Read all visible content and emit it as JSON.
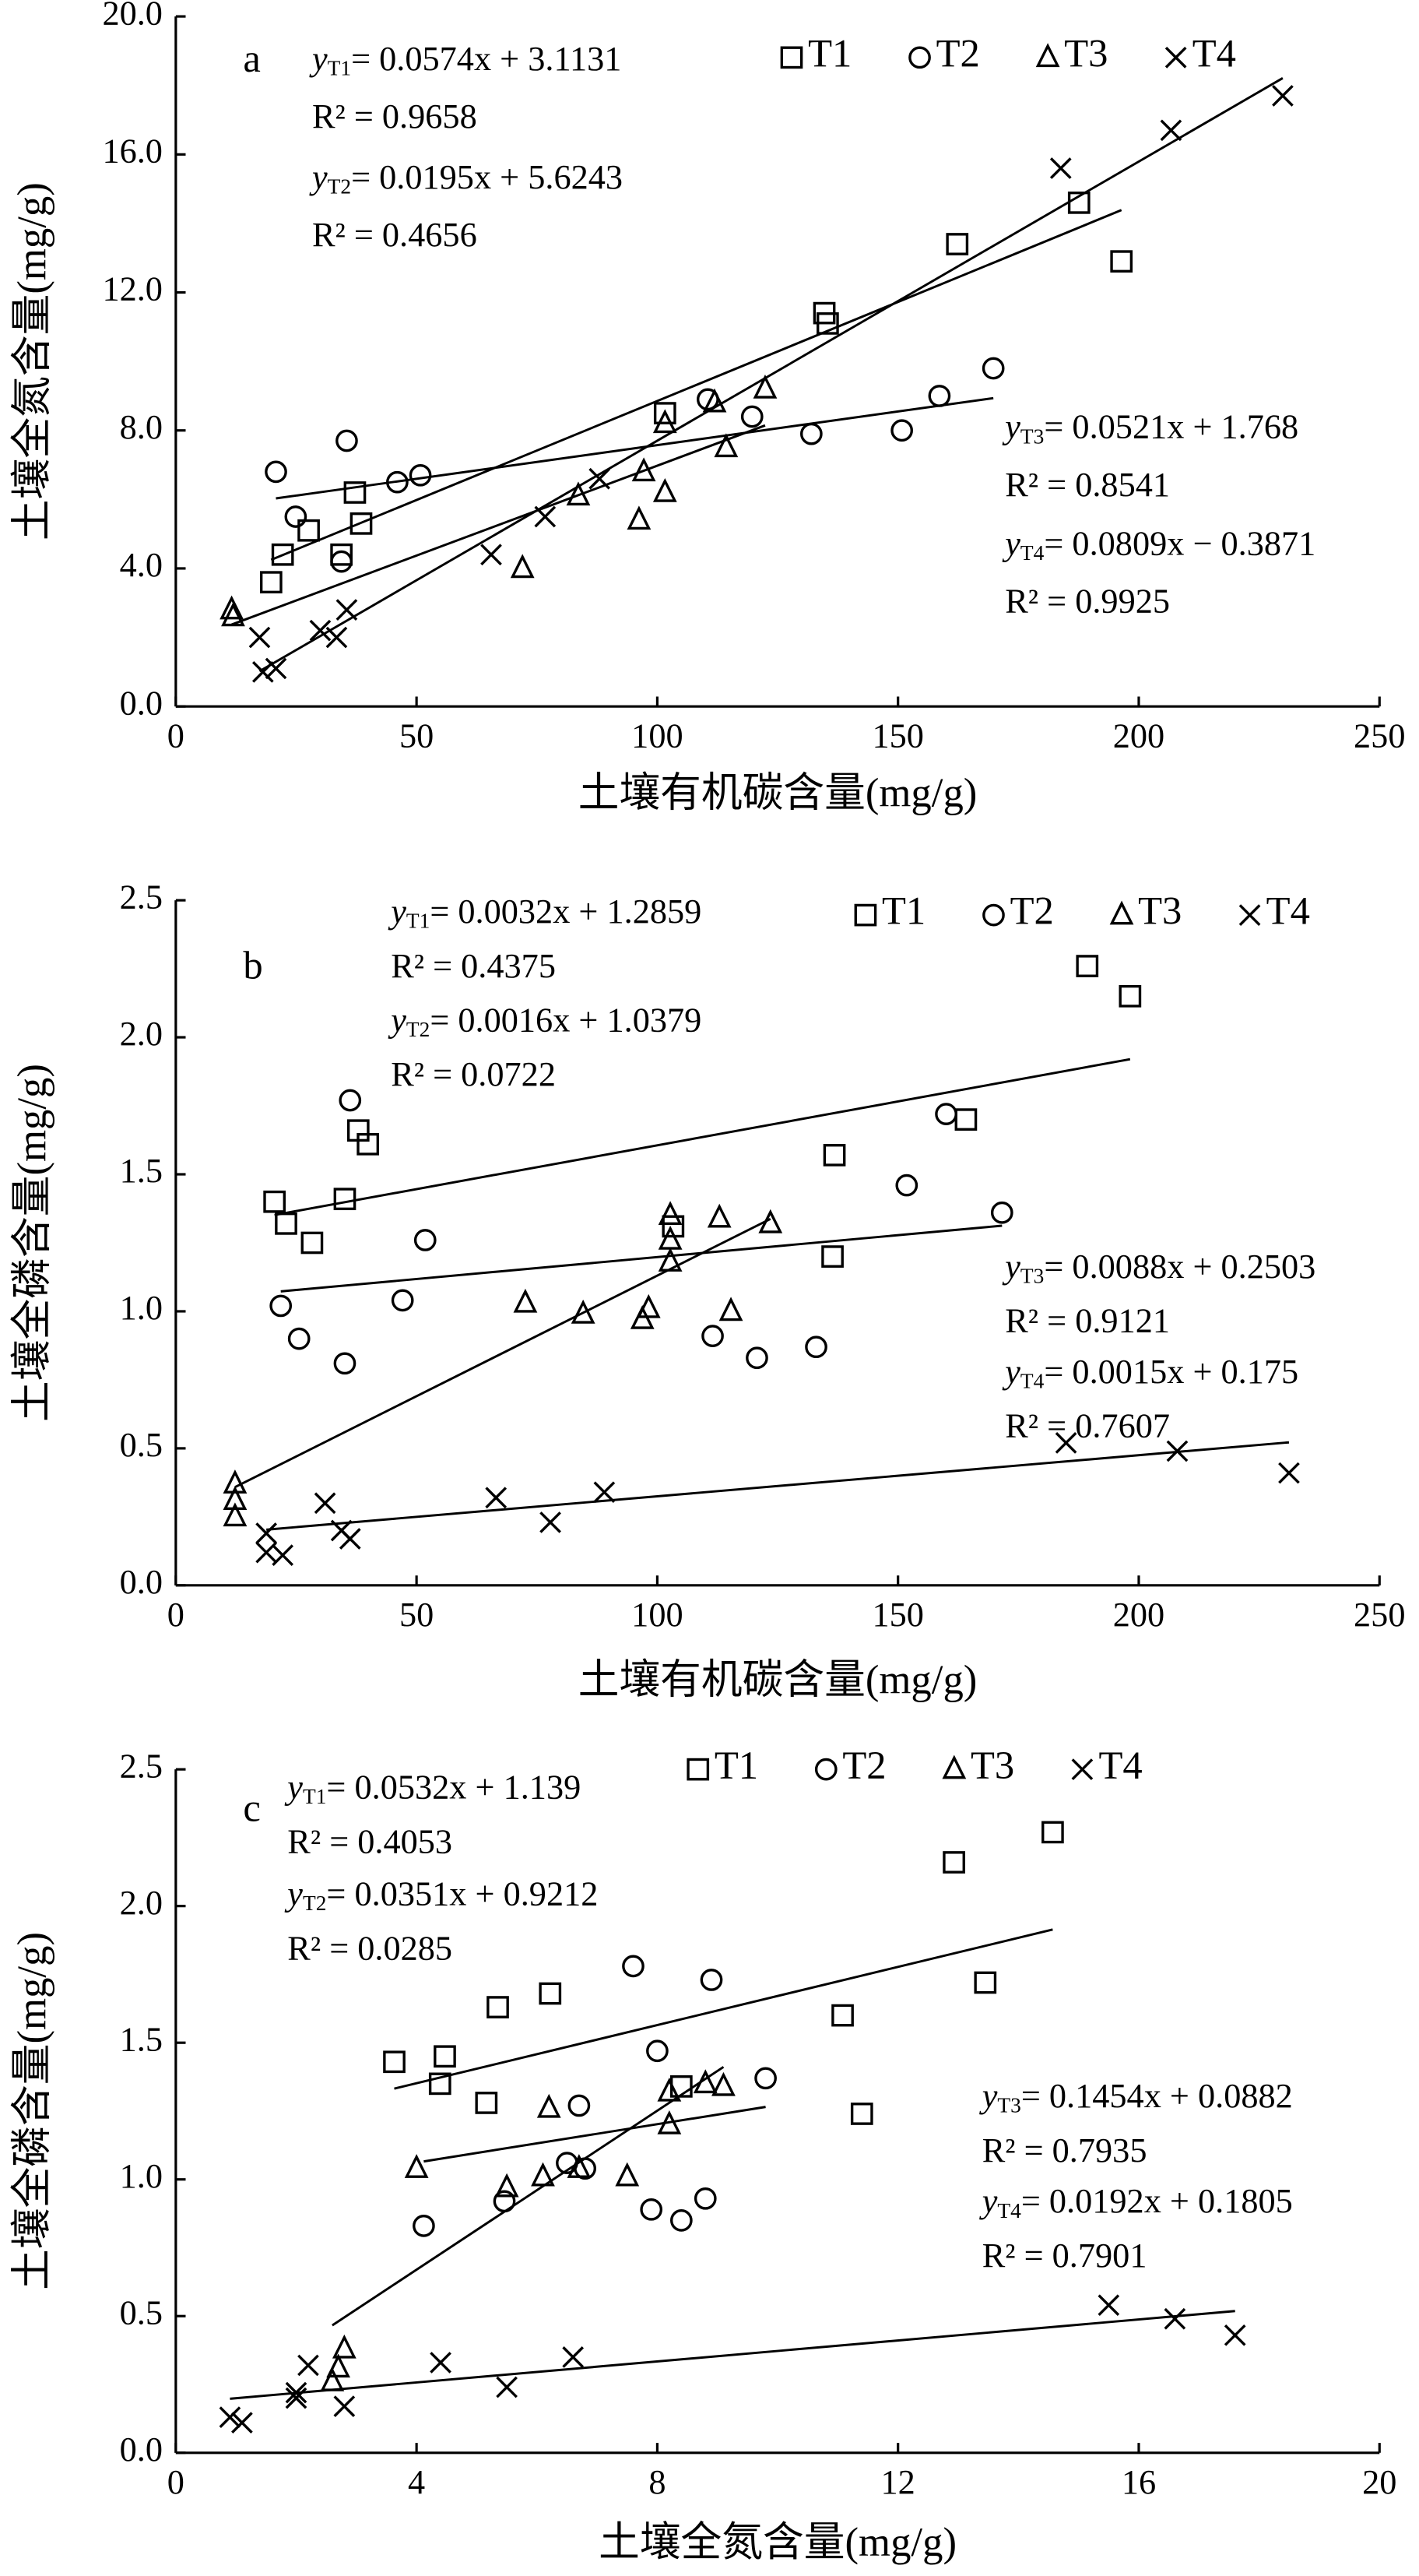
{
  "chart_data": [
    {
      "type": "scatter",
      "panel_label": "a",
      "xlabel": "土壤有机碳含量(mg/g)",
      "ylabel": "土壤全氮含量(mg/g)",
      "xlim": [
        0,
        250
      ],
      "xticks": [
        0,
        50,
        100,
        150,
        200,
        250
      ],
      "ylim": [
        0,
        20
      ],
      "yticks": [
        {
          "value": 0,
          "label": "0.0"
        },
        {
          "value": 4,
          "label": "4.0"
        },
        {
          "value": 8,
          "label": "8.0"
        },
        {
          "value": 12,
          "label": "12.0"
        },
        {
          "value": 16,
          "label": "16.0"
        },
        {
          "value": 20,
          "label": "20.0"
        }
      ],
      "series": [
        {
          "name": "T1",
          "marker": "square",
          "color": "#000000",
          "x": [
            19.8,
            22.2,
            27.6,
            34.4,
            37.2,
            38.5,
            101.6,
            134.7,
            135.4,
            162.3,
            187.6,
            196.4
          ],
          "y": [
            3.6,
            4.4,
            5.1,
            4.4,
            6.2,
            5.3,
            8.5,
            11.4,
            11.1,
            13.4,
            14.6,
            12.9
          ],
          "fit": {
            "slope": 0.0574,
            "intercept": 3.1131,
            "lhs": "y",
            "sub": "T1",
            "rhs": "= 0.0574x + 3.1131",
            "r2": "R² = 0.9658"
          }
        },
        {
          "name": "T2",
          "marker": "circle",
          "color": "#000000",
          "x": [
            20.8,
            24.9,
            35.5,
            34.4,
            46.0,
            50.8,
            110.5,
            119.7,
            132.0,
            150.8,
            158.6,
            169.8
          ],
          "y": [
            6.8,
            5.5,
            7.7,
            4.2,
            6.5,
            6.7,
            8.9,
            8.4,
            7.9,
            8.0,
            9.0,
            9.8
          ],
          "fit": {
            "slope": 0.0195,
            "intercept": 5.6243,
            "lhs": "y",
            "sub": "T2",
            "rhs": "= 0.0195x + 5.6243",
            "r2": "R² = 0.4656"
          }
        },
        {
          "name": "T3",
          "marker": "triangle",
          "color": "#000000",
          "x": [
            11.6,
            11.9,
            72.0,
            83.6,
            96.2,
            97.2,
            101.6,
            101.6,
            111.9,
            114.3,
            122.4
          ],
          "y": [
            2.8,
            2.6,
            4.0,
            6.1,
            5.4,
            6.8,
            8.2,
            6.2,
            8.8,
            7.5,
            9.2
          ],
          "fit": {
            "slope": 0.0521,
            "intercept": 1.768,
            "lhs": "y",
            "sub": "T3",
            "rhs": "=  0.0521x + 1.768",
            "r2": "R² = 0.8541"
          }
        },
        {
          "name": "T4",
          "marker": "cross",
          "color": "#000000",
          "x": [
            17.4,
            18.1,
            20.8,
            30.0,
            33.4,
            35.5,
            65.5,
            76.7,
            88.0,
            183.8,
            206.7,
            229.9
          ],
          "y": [
            2.0,
            1.0,
            1.1,
            2.2,
            2.0,
            2.8,
            4.4,
            5.5,
            6.6,
            15.6,
            16.7,
            17.7
          ],
          "fit": {
            "slope": 0.0809,
            "intercept": -0.3871,
            "lhs": "y",
            "sub": "T4",
            "rhs": "=  0.0809x − 0.3871",
            "r2": "R² = 0.9925"
          }
        }
      ]
    },
    {
      "type": "scatter",
      "panel_label": "b",
      "xlabel": "土壤有机碳含量(mg/g)",
      "ylabel": "土壤全磷含量(mg/g)",
      "xlim": [
        0,
        250
      ],
      "xticks": [
        0,
        50,
        100,
        150,
        200,
        250
      ],
      "ylim": [
        0,
        2.5
      ],
      "yticks": [
        {
          "value": 0,
          "label": "0.0"
        },
        0.5,
        {
          "value": 1,
          "label": "1.0"
        },
        1.5,
        {
          "value": 2,
          "label": "2.0"
        },
        2.5
      ],
      "series": [
        {
          "name": "T1",
          "marker": "square",
          "color": "#000000",
          "x": [
            20.5,
            22.9,
            28.3,
            35.1,
            37.9,
            39.9,
            103.3,
            136.8,
            136.4,
            164.1,
            189.3,
            198.2
          ],
          "y": [
            1.4,
            1.32,
            1.25,
            1.41,
            1.66,
            1.61,
            1.31,
            1.57,
            1.2,
            1.7,
            2.26,
            2.15
          ],
          "fit": {
            "slope": 0.0032,
            "intercept": 1.2859,
            "lhs": "y",
            "sub": "T1",
            "rhs": "= 0.0032x + 1.2859",
            "r2": "R² = 0.4375"
          }
        },
        {
          "name": "T2",
          "marker": "circle",
          "color": "#000000",
          "x": [
            21.8,
            25.6,
            36.2,
            35.1,
            47.1,
            51.8,
            111.5,
            120.7,
            133.0,
            151.8,
            160.0,
            171.6
          ],
          "y": [
            1.02,
            0.9,
            1.77,
            0.81,
            1.04,
            1.26,
            0.91,
            0.83,
            0.87,
            1.46,
            1.72,
            1.36
          ],
          "fit": {
            "slope": 0.0016,
            "intercept": 1.0379,
            "lhs": "y",
            "sub": "T2",
            "rhs": "= 0.0016x + 1.0379",
            "r2": "R² = 0.0722"
          }
        },
        {
          "name": "T3",
          "marker": "triangle",
          "color": "#000000",
          "x": [
            12.3,
            12.3,
            12.3,
            72.6,
            84.6,
            96.9,
            98.2,
            102.7,
            102.7,
            102.7,
            112.9,
            115.3,
            123.5
          ],
          "y": [
            0.37,
            0.31,
            0.25,
            1.03,
            0.99,
            0.97,
            1.01,
            1.35,
            1.26,
            1.18,
            1.34,
            1.0,
            1.32
          ],
          "fit": {
            "slope": 0.0088,
            "intercept": 0.2503,
            "lhs": "y",
            "sub": "T3",
            "rhs": "=  0.0088x + 0.2503",
            "r2": "R² = 0.9121"
          }
        },
        {
          "name": "T4",
          "marker": "cross",
          "color": "#000000",
          "x": [
            18.8,
            18.8,
            22.2,
            31.0,
            34.4,
            36.2,
            66.5,
            77.8,
            89.0,
            184.9,
            208.0,
            231.2
          ],
          "y": [
            0.19,
            0.12,
            0.11,
            0.3,
            0.2,
            0.17,
            0.32,
            0.23,
            0.34,
            0.52,
            0.49,
            0.41
          ],
          "fit": {
            "slope": 0.0015,
            "intercept": 0.175,
            "lhs": "y",
            "sub": "T4",
            "rhs": "=  0.0015x + 0.175",
            "r2": "R² = 0.7607"
          }
        }
      ]
    },
    {
      "type": "scatter",
      "panel_label": "c",
      "xlabel": "土壤全氮含量(mg/g)",
      "ylabel": "土壤全磷含量(mg/g)",
      "xlim": [
        0,
        20
      ],
      "xticks": [
        0,
        4,
        8,
        12,
        16,
        20
      ],
      "ylim": [
        0,
        2.5
      ],
      "yticks": [
        {
          "value": 0,
          "label": "0.0"
        },
        0.5,
        {
          "value": 1,
          "label": "1.0"
        },
        1.5,
        {
          "value": 2,
          "label": "2.0"
        },
        2.5
      ],
      "series": [
        {
          "name": "T1",
          "marker": "square",
          "color": "#000000",
          "x": [
            3.63,
            4.39,
            4.47,
            5.16,
            5.35,
            6.22,
            8.4,
            11.08,
            11.4,
            12.93,
            13.45,
            14.57
          ],
          "y": [
            1.43,
            1.35,
            1.45,
            1.28,
            1.63,
            1.68,
            1.34,
            1.6,
            1.24,
            2.16,
            1.72,
            2.27
          ],
          "fit": {
            "slope": 0.0532,
            "intercept": 1.139,
            "lhs": "y",
            "sub": "T1",
            "rhs": "= 0.0532x + 1.139",
            "r2": "R² = 0.4053"
          }
        },
        {
          "name": "T2",
          "marker": "circle",
          "color": "#000000",
          "x": [
            4.12,
            5.46,
            6.5,
            6.7,
            6.8,
            7.6,
            7.9,
            8.0,
            8.4,
            8.8,
            8.9,
            9.8
          ],
          "y": [
            0.83,
            0.92,
            1.06,
            1.27,
            1.04,
            1.78,
            0.89,
            1.47,
            0.85,
            0.93,
            1.73,
            1.37
          ],
          "fit": {
            "slope": 0.0351,
            "intercept": 0.9212,
            "lhs": "y",
            "sub": "T2",
            "rhs": "= 0.0351x + 0.9212",
            "r2": "R² = 0.0285"
          }
        },
        {
          "name": "T3",
          "marker": "triangle",
          "color": "#000000",
          "x": [
            2.6,
            2.7,
            2.8,
            4.0,
            5.5,
            6.1,
            6.2,
            6.7,
            7.5,
            8.2,
            8.2,
            8.8,
            9.1
          ],
          "y": [
            0.26,
            0.31,
            0.38,
            1.04,
            0.97,
            1.01,
            1.26,
            1.04,
            1.01,
            1.2,
            1.32,
            1.35,
            1.34
          ],
          "fit": {
            "slope": 0.1454,
            "intercept": 0.0882,
            "lhs": "y",
            "sub": "T3",
            "rhs": "=  0.1454x + 0.0882",
            "r2": "R² = 0.7935"
          }
        },
        {
          "name": "T4",
          "marker": "cross",
          "color": "#000000",
          "x": [
            0.9,
            1.1,
            2.0,
            2.0,
            2.2,
            2.8,
            4.4,
            5.5,
            6.6,
            15.5,
            16.6,
            17.6
          ],
          "y": [
            0.13,
            0.11,
            0.22,
            0.2,
            0.32,
            0.17,
            0.33,
            0.24,
            0.35,
            0.54,
            0.49,
            0.43
          ],
          "fit": {
            "slope": 0.0192,
            "intercept": 0.1805,
            "lhs": "y",
            "sub": "T4",
            "rhs": "=  0.0192x + 0.1805",
            "r2": "R² = 0.7901"
          }
        }
      ]
    }
  ]
}
